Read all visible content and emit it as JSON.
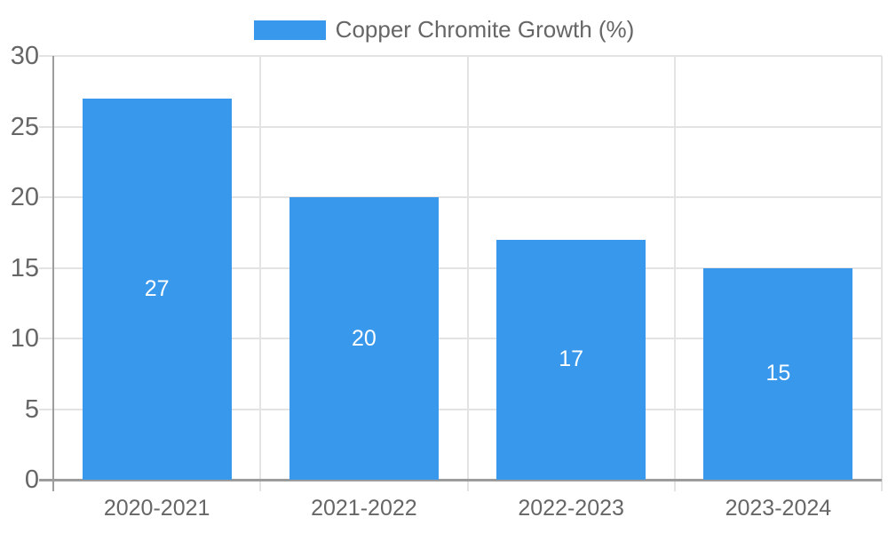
{
  "chart_data": {
    "type": "bar",
    "title": "Copper Chromite Growth (%)",
    "legend": {
      "label": "Copper Chromite Growth (%)",
      "position": "top"
    },
    "categories": [
      "2020-2021",
      "2021-2022",
      "2022-2023",
      "2023-2024"
    ],
    "series": [
      {
        "name": "Copper Chromite Growth (%)",
        "values": [
          27,
          20,
          17,
          15
        ]
      }
    ],
    "value_labels": [
      "27",
      "20",
      "17",
      "15"
    ],
    "xlabel": "",
    "ylabel": "",
    "ylim": [
      0,
      30
    ],
    "ytick_step": 5,
    "yticks": [
      0,
      5,
      10,
      15,
      20,
      25,
      30
    ],
    "grid": true,
    "grid_vertical_at_category_boundaries": true,
    "value_labels_position": "center-of-bar",
    "colors": {
      "bar": "#3898ec",
      "grid": "#e3e3e3",
      "axis": "#9c9c9c",
      "tick_text": "#666666",
      "value_label": "#ffffff",
      "background": "#ffffff"
    }
  }
}
